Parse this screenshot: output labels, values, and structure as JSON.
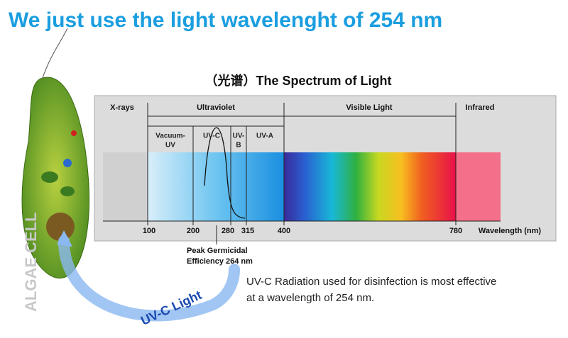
{
  "header": {
    "title": "We just use the light wavelenght of 254 nm"
  },
  "spectrum": {
    "title": "（光谱）The Spectrum of Light",
    "bands": [
      "X-rays",
      "Ultraviolet",
      "Visible Light",
      "Infrared"
    ],
    "uv_bands": [
      "Vacuum-",
      "UV",
      "UV-C",
      "UV-",
      "B",
      "UV-A"
    ],
    "ticks": [
      "100",
      "200",
      "280",
      "315",
      "400",
      "780"
    ],
    "axis_label": "Wavelength (nm)",
    "peak_note": [
      "Peak Germicidal",
      "Efficiency 264 nm"
    ]
  },
  "note": [
    "UV-C Radiation used for disinfection is most effective",
    "at a wavelength of 254 nm."
  ],
  "cell": {
    "label": "ALGAE CELL",
    "beam": "UV-C Light"
  }
}
